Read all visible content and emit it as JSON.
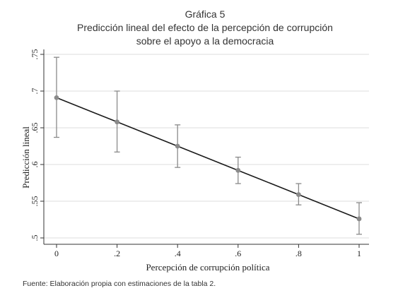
{
  "figure": {
    "label": "Gráfica 5",
    "title_line1": "Predicción lineal del efecto de la percepción de corrupción",
    "title_line2": "sobre el apoyo a la democracia",
    "source": "Fuente: Elaboración propia con estimaciones de la tabla 2."
  },
  "chart_data": {
    "type": "line",
    "xlabel": "Percepción de corrupción política",
    "ylabel": "Predicción lineal",
    "xlim": [
      0,
      1
    ],
    "ylim": [
      0.5,
      0.75
    ],
    "x_ticks": [
      0,
      0.2,
      0.4,
      0.6,
      0.8,
      1
    ],
    "x_tick_labels": [
      "0",
      ".2",
      ".4",
      ".6",
      ".8",
      "1"
    ],
    "y_ticks": [
      0.5,
      0.55,
      0.6,
      0.65,
      0.7,
      0.75
    ],
    "y_tick_labels": [
      ".5",
      ".55",
      ".6",
      ".65",
      ".7",
      ".75"
    ],
    "grid": true,
    "series": [
      {
        "x": [
          0,
          0.2,
          0.4,
          0.6,
          0.8,
          1
        ],
        "y": [
          0.691,
          0.658,
          0.625,
          0.592,
          0.559,
          0.526
        ],
        "ci_low": [
          0.637,
          0.617,
          0.596,
          0.574,
          0.545,
          0.505
        ],
        "ci_high": [
          0.746,
          0.7,
          0.654,
          0.61,
          0.574,
          0.548
        ]
      }
    ],
    "colors": {
      "line": "#1a1a1a",
      "marker": "#8a8a8a",
      "errorbar": "#8a8a8a",
      "grid": "#dcdcdc",
      "axis": "#333333"
    }
  }
}
